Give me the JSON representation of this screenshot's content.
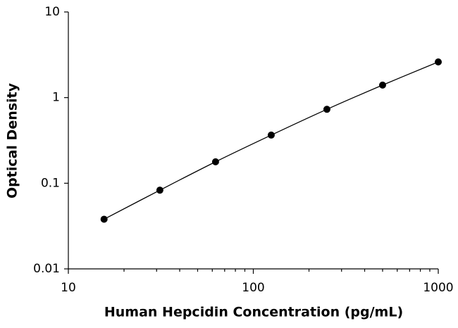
{
  "chart_data": {
    "type": "scatter",
    "x_label": "Human Hepcidin Concentration (pg/mL)",
    "y_label": "Optical Density",
    "x": [
      15.6,
      31.25,
      62.5,
      125,
      250,
      500,
      1000
    ],
    "values": [
      0.038,
      0.083,
      0.178,
      0.365,
      0.73,
      1.4,
      2.61
    ],
    "color": "#000000",
    "xlog": true,
    "ylog": true,
    "xlim": [
      10,
      1000
    ],
    "ylim": [
      0.01,
      10
    ],
    "xticks": [
      10,
      100,
      1000
    ],
    "xminor_ticks": [
      20,
      30,
      40,
      50,
      60,
      70,
      80,
      90,
      200,
      300,
      400,
      500,
      600,
      700,
      800,
      900
    ],
    "yticks": [
      0.01,
      0.1,
      1,
      10
    ],
    "grid": false
  }
}
